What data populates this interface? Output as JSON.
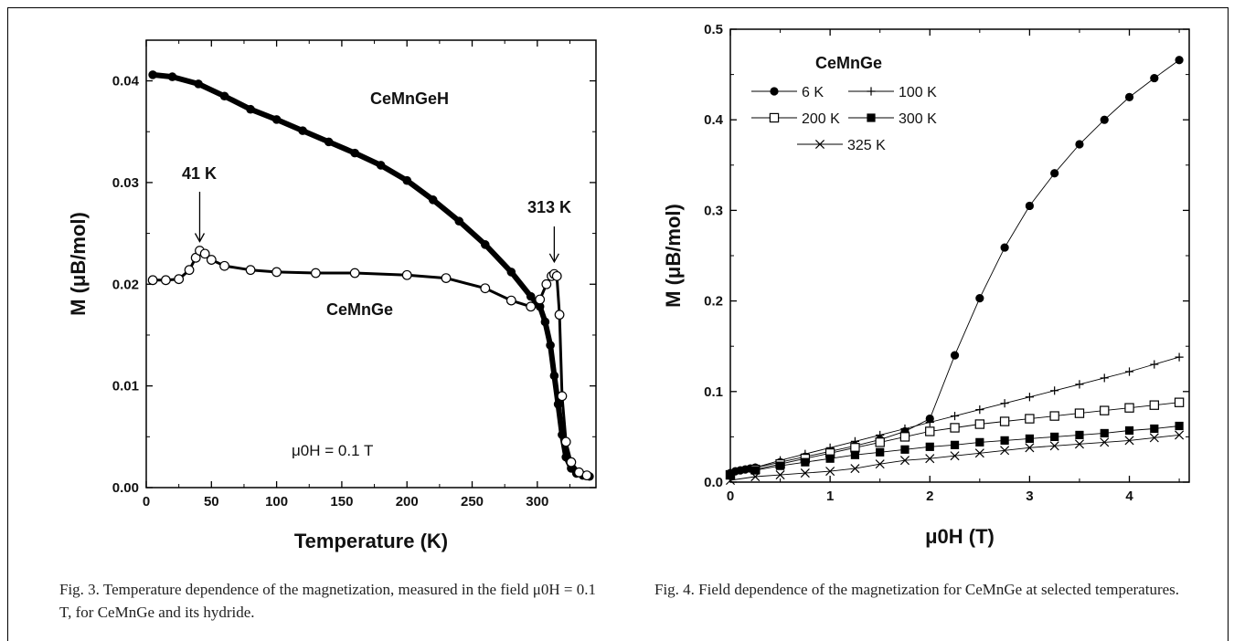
{
  "chart_data": [
    {
      "type": "scatter",
      "xlabel": "Temperature (K)",
      "ylabel": "M (μB/mol)",
      "xlim": [
        0,
        345
      ],
      "ylim": [
        0,
        0.044
      ],
      "xticks": [
        0,
        50,
        100,
        150,
        200,
        250,
        300
      ],
      "yticks": [
        0.0,
        0.01,
        0.02,
        0.03,
        0.04
      ],
      "annotations": {
        "field": "μ0H = 0.1 T",
        "peak1": "41 K",
        "peak2": "313 K"
      },
      "series": [
        {
          "name": "CeMnGeH",
          "marker": "filled-circle",
          "x": [
            5,
            20,
            40,
            60,
            80,
            100,
            120,
            140,
            160,
            180,
            200,
            220,
            240,
            260,
            280,
            295,
            302,
            306,
            310,
            313,
            316,
            319,
            322,
            326,
            330,
            335,
            340
          ],
          "y": [
            0.0406,
            0.0404,
            0.0397,
            0.0385,
            0.0372,
            0.0362,
            0.0351,
            0.034,
            0.0329,
            0.0317,
            0.0302,
            0.0283,
            0.0262,
            0.0239,
            0.0212,
            0.0188,
            0.0178,
            0.0163,
            0.014,
            0.011,
            0.0082,
            0.0052,
            0.003,
            0.0019,
            0.0014,
            0.0012,
            0.0011
          ]
        },
        {
          "name": "CeMnGe",
          "marker": "open-circle",
          "x": [
            5,
            15,
            25,
            33,
            38,
            41,
            45,
            50,
            60,
            80,
            100,
            130,
            160,
            200,
            230,
            260,
            280,
            295,
            302,
            307,
            311,
            313,
            315,
            317,
            319,
            322,
            326,
            332,
            338
          ],
          "y": [
            0.0204,
            0.0204,
            0.0205,
            0.0214,
            0.0226,
            0.0233,
            0.023,
            0.0224,
            0.0218,
            0.0214,
            0.0212,
            0.0211,
            0.0211,
            0.0209,
            0.0206,
            0.0196,
            0.0184,
            0.0178,
            0.0185,
            0.02,
            0.0208,
            0.021,
            0.0208,
            0.017,
            0.009,
            0.0045,
            0.0025,
            0.0015,
            0.0012
          ]
        }
      ]
    },
    {
      "type": "line",
      "xlabel": "μ0H (T)",
      "ylabel": "M (μB/mol)",
      "xlim": [
        0,
        4.6
      ],
      "ylim": [
        0,
        0.5
      ],
      "xticks": [
        0,
        1,
        2,
        3,
        4
      ],
      "yticks": [
        0.0,
        0.1,
        0.2,
        0.3,
        0.4,
        0.5
      ],
      "legend_title": "CeMnGe",
      "legend_placement": "top-left",
      "series": [
        {
          "name": "6 K",
          "marker": "filled-circle",
          "x": [
            0,
            0.05,
            0.1,
            0.15,
            0.2,
            0.25,
            0.5,
            0.75,
            1.0,
            1.25,
            1.5,
            1.75,
            2.0,
            2.25,
            2.5,
            2.75,
            3.0,
            3.25,
            3.5,
            3.75,
            4.0,
            4.25,
            4.5
          ],
          "y": [
            0.01,
            0.012,
            0.013,
            0.014,
            0.015,
            0.016,
            0.022,
            0.028,
            0.034,
            0.04,
            0.047,
            0.056,
            0.07,
            0.14,
            0.203,
            0.259,
            0.305,
            0.341,
            0.373,
            0.4,
            0.425,
            0.446,
            0.466
          ]
        },
        {
          "name": "100 K",
          "marker": "plus",
          "x": [
            0,
            0.25,
            0.5,
            0.75,
            1.0,
            1.25,
            1.5,
            1.75,
            2.0,
            2.25,
            2.5,
            2.75,
            3.0,
            3.25,
            3.5,
            3.75,
            4.0,
            4.25,
            4.5
          ],
          "y": [
            0.01,
            0.016,
            0.024,
            0.031,
            0.038,
            0.045,
            0.052,
            0.059,
            0.066,
            0.073,
            0.08,
            0.087,
            0.094,
            0.101,
            0.108,
            0.115,
            0.122,
            0.13,
            0.138
          ]
        },
        {
          "name": "200 K",
          "marker": "open-square",
          "x": [
            0,
            0.25,
            0.5,
            0.75,
            1.0,
            1.25,
            1.5,
            1.75,
            2.0,
            2.25,
            2.5,
            2.75,
            3.0,
            3.25,
            3.5,
            3.75,
            4.0,
            4.25,
            4.5
          ],
          "y": [
            0.008,
            0.014,
            0.02,
            0.026,
            0.032,
            0.038,
            0.044,
            0.05,
            0.056,
            0.06,
            0.064,
            0.067,
            0.07,
            0.073,
            0.076,
            0.079,
            0.082,
            0.085,
            0.088
          ]
        },
        {
          "name": "300 K",
          "marker": "filled-square",
          "x": [
            0,
            0.25,
            0.5,
            0.75,
            1.0,
            1.25,
            1.5,
            1.75,
            2.0,
            2.25,
            2.5,
            2.75,
            3.0,
            3.25,
            3.5,
            3.75,
            4.0,
            4.25,
            4.5
          ],
          "y": [
            0.008,
            0.013,
            0.018,
            0.022,
            0.026,
            0.03,
            0.033,
            0.036,
            0.039,
            0.041,
            0.044,
            0.046,
            0.048,
            0.05,
            0.052,
            0.054,
            0.057,
            0.059,
            0.062
          ]
        },
        {
          "name": "325 K",
          "marker": "cross",
          "x": [
            0,
            0.25,
            0.5,
            0.75,
            1.0,
            1.25,
            1.5,
            1.75,
            2.0,
            2.25,
            2.5,
            2.75,
            3.0,
            3.25,
            3.5,
            3.75,
            4.0,
            4.25,
            4.5
          ],
          "y": [
            0.002,
            0.006,
            0.008,
            0.01,
            0.012,
            0.015,
            0.02,
            0.024,
            0.026,
            0.029,
            0.032,
            0.035,
            0.038,
            0.04,
            0.042,
            0.044,
            0.046,
            0.049,
            0.052
          ]
        }
      ]
    }
  ],
  "captions": {
    "fig3": "Fig. 3. Temperature dependence of the magnetization, measured in the field μ0H = 0.1 T, for CeMnGe and its hydride.",
    "fig4": "Fig. 4. Field dependence of the magnetization for CeMnGe at selected temperatures."
  }
}
